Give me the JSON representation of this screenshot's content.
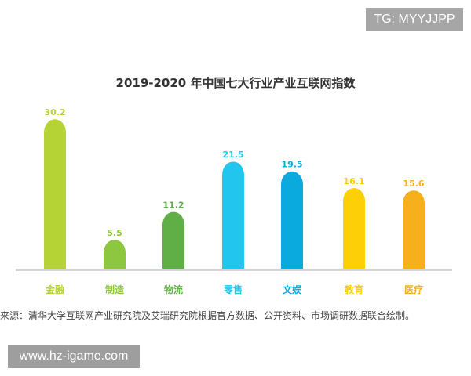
{
  "watermark_top": "TG: MYYJJPP",
  "watermark_bottom": "www.hz-igame.com",
  "source": "来源：清华大学互联网产业研究院及艾瑞研究院根据官方数据、公开资料、市场调研数据联合绘制。",
  "chart_data": {
    "type": "bar",
    "title": "2019-2020 年中国七大行业产业互联网指数",
    "categories": [
      "金融",
      "制造",
      "物流",
      "零售",
      "文娱",
      "教育",
      "医疗"
    ],
    "values": [
      30.2,
      5.5,
      11.2,
      21.5,
      19.5,
      16.1,
      15.6
    ],
    "value_labels": [
      "30.2",
      "5.5",
      "11.2",
      "21.5",
      "19.5",
      "16.1",
      "15.6"
    ],
    "colors": [
      "#b5d334",
      "#8dc63f",
      "#5fae46",
      "#22c5ee",
      "#0aa9de",
      "#fdcf07",
      "#f6b01c"
    ],
    "ylim": [
      0,
      32
    ],
    "grid": false,
    "legend": "none"
  }
}
